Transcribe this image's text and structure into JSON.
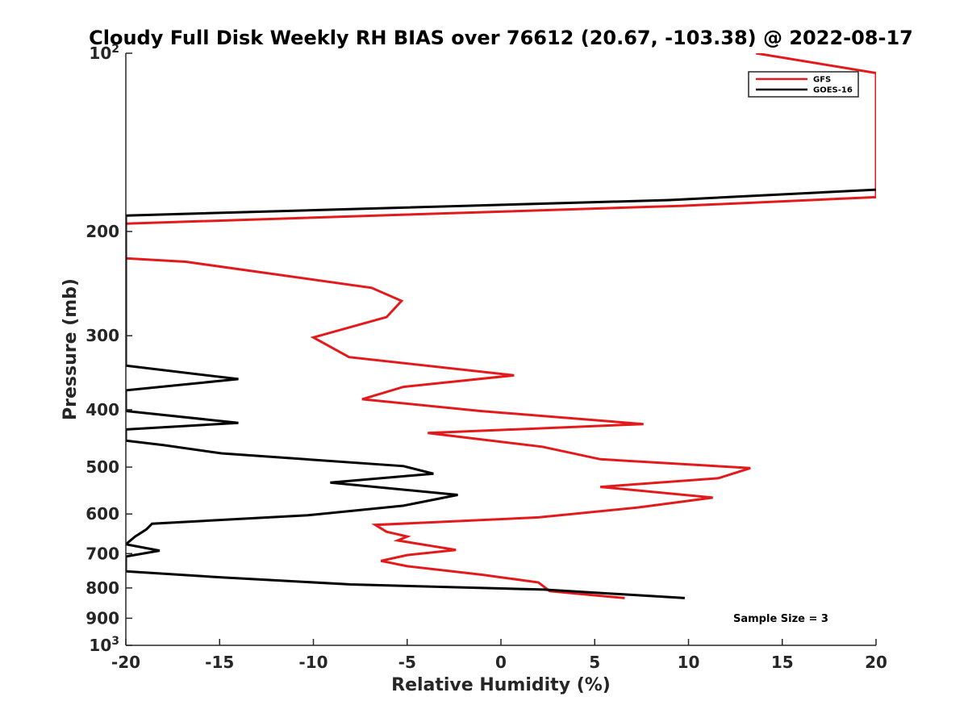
{
  "chart_data": {
    "type": "line",
    "title": "Cloudy Full Disk Weekly RH BIAS over 76612 (20.67, -103.38) @ 2022-08-17",
    "xlabel": "Relative Humidity (%)",
    "ylabel": "Pressure (mb)",
    "xlim": [
      -20,
      20
    ],
    "ylim": [
      100,
      1000
    ],
    "y_scale": "log",
    "y_reversed": true,
    "grid": false,
    "x_ticks": [
      -20,
      -15,
      -10,
      -5,
      0,
      5,
      10,
      15,
      20
    ],
    "x_tick_labels": [
      "-20",
      "-15",
      "-10",
      "-5",
      "0",
      "5",
      "10",
      "15",
      "20"
    ],
    "y_ticks": [
      {
        "value": 100,
        "label": "10",
        "sup": "2"
      },
      {
        "value": 200,
        "label": "200",
        "sup": ""
      },
      {
        "value": 300,
        "label": "300",
        "sup": ""
      },
      {
        "value": 400,
        "label": "400",
        "sup": ""
      },
      {
        "value": 500,
        "label": "500",
        "sup": ""
      },
      {
        "value": 600,
        "label": "600",
        "sup": ""
      },
      {
        "value": 700,
        "label": "700",
        "sup": ""
      },
      {
        "value": 800,
        "label": "800",
        "sup": ""
      },
      {
        "value": 900,
        "label": "900",
        "sup": ""
      },
      {
        "value": 1000,
        "label": "10",
        "sup": "3"
      }
    ],
    "legend_position": "top-right",
    "annotation": "Sample Size = 3",
    "series": [
      {
        "name": "GFS",
        "color": "#e31a1c",
        "points": [
          [
            13.6,
            100
          ],
          [
            20.0,
            108
          ],
          [
            20.0,
            175
          ],
          [
            9.7,
            181
          ],
          [
            -20.0,
            194
          ],
          [
            -20.0,
            222
          ],
          [
            -16.8,
            225
          ],
          [
            -6.9,
            249
          ],
          [
            -5.3,
            262
          ],
          [
            -6.1,
            279
          ],
          [
            -10.0,
            302
          ],
          [
            -8.1,
            326
          ],
          [
            0.7,
            350
          ],
          [
            -5.2,
            366
          ],
          [
            -7.4,
            384
          ],
          [
            -1.1,
            402
          ],
          [
            7.6,
            423
          ],
          [
            -3.9,
            438
          ],
          [
            2.2,
            462
          ],
          [
            5.3,
            485
          ],
          [
            13.3,
            502
          ],
          [
            11.6,
            522
          ],
          [
            5.3,
            540
          ],
          [
            11.3,
            563
          ],
          [
            7.3,
            585
          ],
          [
            2.0,
            608
          ],
          [
            -6.7,
            626
          ],
          [
            -6.1,
            643
          ],
          [
            -5.0,
            655
          ],
          [
            -5.5,
            665
          ],
          [
            -2.4,
            690
          ],
          [
            -5.0,
            704
          ],
          [
            -6.4,
            720
          ],
          [
            -5.0,
            735
          ],
          [
            -1.0,
            760
          ],
          [
            2.0,
            783
          ],
          [
            2.6,
            810
          ],
          [
            6.6,
            832
          ]
        ]
      },
      {
        "name": "GOES-16",
        "color": "#000000",
        "points": [
          [
            20.0,
            170
          ],
          [
            9.0,
            177
          ],
          [
            -20.0,
            188
          ],
          [
            -20.0,
            337
          ],
          [
            -14.0,
            355
          ],
          [
            -20.0,
            371
          ],
          [
            -20.0,
            402
          ],
          [
            -14.0,
            421
          ],
          [
            -20.0,
            432
          ],
          [
            -20.0,
            451
          ],
          [
            -18.0,
            459
          ],
          [
            -14.9,
            474
          ],
          [
            -5.2,
            498
          ],
          [
            -3.6,
            513
          ],
          [
            -9.1,
            531
          ],
          [
            -2.3,
            557
          ],
          [
            -5.2,
            581
          ],
          [
            -10.3,
            603
          ],
          [
            -18.6,
            623
          ],
          [
            -18.9,
            637
          ],
          [
            -19.5,
            655
          ],
          [
            -20.0,
            675
          ],
          [
            -18.2,
            692
          ],
          [
            -20.0,
            708
          ],
          [
            -20.0,
            750
          ],
          [
            -14.8,
            768
          ],
          [
            -8.0,
            789
          ],
          [
            2.3,
            805
          ],
          [
            9.8,
            832
          ]
        ]
      }
    ]
  }
}
